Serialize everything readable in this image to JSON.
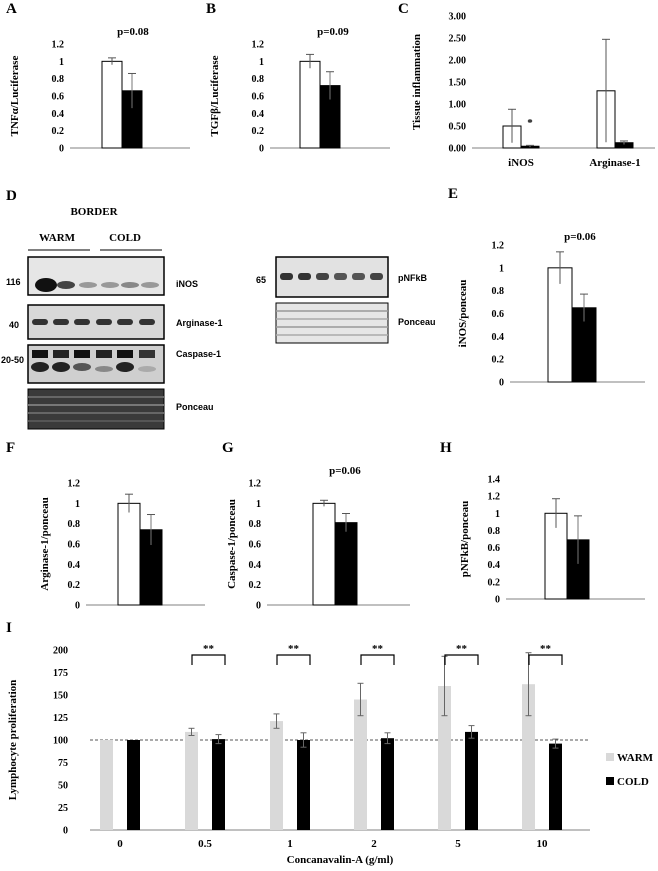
{
  "colors": {
    "warm_fill": "#ffffff",
    "cold_fill": "#000000",
    "warm_I": "#d9d9d9",
    "axis": "#808080"
  },
  "panels": {
    "A": {
      "letter": "A",
      "ptext": "p=0.08",
      "ylabel": "TNFα/Luciferase"
    },
    "B": {
      "letter": "B",
      "ptext": "p=0.09",
      "ylabel": "TGFβ/Luciferase"
    },
    "C": {
      "letter": "C",
      "ylabel": "Tissue inflammation",
      "star": "*"
    },
    "D": {
      "letter": "D",
      "border": "BORDER",
      "warm": "WARM",
      "cold": "COLD",
      "mw_116": "116",
      "mw_40": "40",
      "mw_2050": "20-50",
      "mw_65": "65",
      "inos": "iNOS",
      "arginase": "Arginase-1",
      "caspase": "Caspase-1",
      "ponceau": "Ponceau",
      "pnfkb": "pNFkB",
      "ponceau2": "Ponceau"
    },
    "E": {
      "letter": "E",
      "ptext": "p=0.06",
      "ylabel": "iNOS/ponceau"
    },
    "F": {
      "letter": "F",
      "ylabel": "Arginase-1/ponceau"
    },
    "G": {
      "letter": "G",
      "ptext": "p=0.06",
      "ylabel": "Caspase-1/ponceau"
    },
    "H": {
      "letter": "H",
      "ylabel": "pNFkB/ponceau"
    },
    "I": {
      "letter": "I",
      "ylabel": "Lymphocyte proliferation",
      "xlabel": "Concanavalin-A (g/ml)",
      "sig": "**"
    }
  },
  "chart_data": [
    {
      "id": "A",
      "type": "bar",
      "ylabel": "TNFα/Luciferase",
      "ylim": [
        0,
        1.2
      ],
      "yticks": [
        "0",
        "0.2",
        "0.4",
        "0.6",
        "0.8",
        "1",
        "1.2"
      ],
      "annotation": "p=0.08",
      "series": [
        {
          "values": [
            1.0
          ],
          "err": [
            0.04
          ]
        },
        {
          "values": [
            0.66
          ],
          "err": [
            0.2
          ]
        }
      ]
    },
    {
      "id": "B",
      "type": "bar",
      "ylabel": "TGFβ/Luciferase",
      "ylim": [
        0,
        1.2
      ],
      "yticks": [
        "0",
        "0.2",
        "0.4",
        "0.6",
        "0.8",
        "1",
        "1.2"
      ],
      "annotation": "p=0.09",
      "series": [
        {
          "values": [
            1.0
          ],
          "err": [
            0.08
          ]
        },
        {
          "values": [
            0.72
          ],
          "err": [
            0.16
          ]
        }
      ]
    },
    {
      "id": "C",
      "type": "bar",
      "ylabel": "Tissue inflammation",
      "ylim": [
        0,
        3.0
      ],
      "yticks": [
        "0.00",
        "0.50",
        "1.00",
        "1.50",
        "2.00",
        "2.50",
        "3.00"
      ],
      "categories": [
        "iNOS",
        "Arginase-1"
      ],
      "annotation": "*",
      "series": [
        {
          "values": [
            0.5,
            1.3
          ],
          "err": [
            0.38,
            1.17
          ]
        },
        {
          "values": [
            0.04,
            0.12
          ],
          "err": [
            0.02,
            0.04
          ]
        }
      ]
    },
    {
      "id": "E",
      "type": "bar",
      "ylabel": "iNOS/ponceau",
      "ylim": [
        0,
        1.2
      ],
      "yticks": [
        "0",
        "0.2",
        "0.4",
        "0.6",
        "0.8",
        "1",
        "1.2"
      ],
      "annotation": "p=0.06",
      "series": [
        {
          "values": [
            1.0
          ],
          "err": [
            0.14
          ]
        },
        {
          "values": [
            0.65
          ],
          "err": [
            0.12
          ]
        }
      ]
    },
    {
      "id": "F",
      "type": "bar",
      "ylabel": "Arginase-1/ponceau",
      "ylim": [
        0,
        1.2
      ],
      "yticks": [
        "0",
        "0.2",
        "0.4",
        "0.6",
        "0.8",
        "1",
        "1.2"
      ],
      "series": [
        {
          "values": [
            1.0
          ],
          "err": [
            0.09
          ]
        },
        {
          "values": [
            0.74
          ],
          "err": [
            0.15
          ]
        }
      ]
    },
    {
      "id": "G",
      "type": "bar",
      "ylabel": "Caspase-1/ponceau",
      "ylim": [
        0,
        1.2
      ],
      "yticks": [
        "0",
        "0.2",
        "0.4",
        "0.6",
        "0.8",
        "1",
        "1.2"
      ],
      "annotation": "p=0.06",
      "series": [
        {
          "values": [
            1.0
          ],
          "err": [
            0.03
          ]
        },
        {
          "values": [
            0.81
          ],
          "err": [
            0.09
          ]
        }
      ]
    },
    {
      "id": "H",
      "type": "bar",
      "ylabel": "pNFkB/ponceau",
      "ylim": [
        0,
        1.4
      ],
      "yticks": [
        "0",
        "0.2",
        "0.4",
        "0.6",
        "0.8",
        "1",
        "1.2",
        "1.4"
      ],
      "series": [
        {
          "values": [
            1.0
          ],
          "err": [
            0.17
          ]
        },
        {
          "values": [
            0.69
          ],
          "err": [
            0.28
          ]
        }
      ]
    },
    {
      "id": "I",
      "type": "bar",
      "ylabel": "Lymphocyte proliferation",
      "xlabel": "Concanavalin-A (g/ml)",
      "ylim": [
        0,
        200
      ],
      "yticks": [
        "0",
        "25",
        "50",
        "75",
        "100",
        "125",
        "150",
        "175",
        "200"
      ],
      "categories": [
        "0",
        "0.5",
        "1",
        "2",
        "5",
        "10"
      ],
      "reference_line": 100,
      "significance": [
        "",
        "**",
        "**",
        "**",
        "**",
        "**"
      ],
      "legend": "right",
      "series": [
        {
          "name": "WARM",
          "values": [
            100,
            109,
            121,
            145,
            160,
            162
          ],
          "err": [
            0,
            4,
            8,
            18,
            33,
            35
          ]
        },
        {
          "name": "COLD",
          "values": [
            100,
            101,
            100,
            102,
            109,
            96
          ],
          "err": [
            0,
            5,
            8,
            6,
            7,
            5
          ]
        }
      ]
    }
  ]
}
